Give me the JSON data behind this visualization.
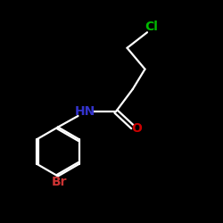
{
  "bg_color": "#000000",
  "bond_color": "#ffffff",
  "cl_color": "#00bb00",
  "br_color": "#cc3333",
  "nh_color": "#3333cc",
  "o_color": "#cc0000",
  "cl_label": "Cl",
  "br_label": "Br",
  "nh_label": "HN",
  "o_label": "O",
  "figsize": [
    2.5,
    2.5
  ],
  "dpi": 100,
  "lw": 1.6,
  "font_size": 10
}
